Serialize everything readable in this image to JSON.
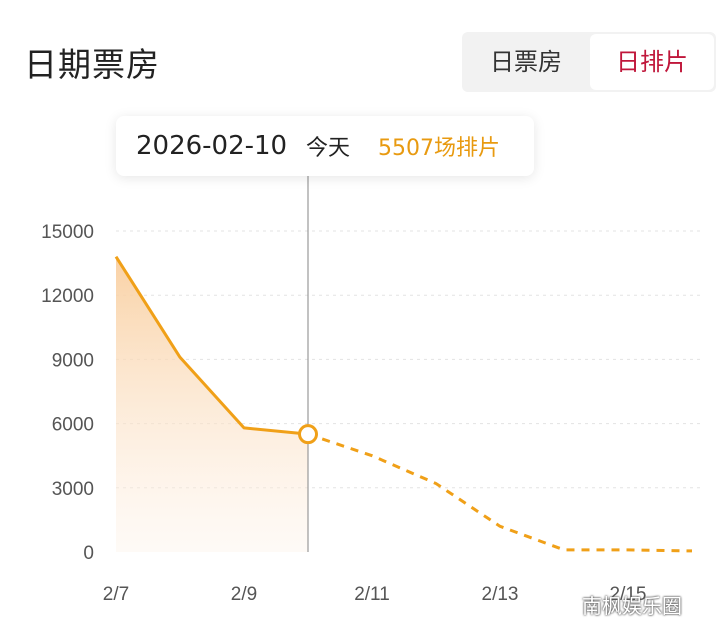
{
  "header": {
    "title": "日期票房",
    "toggle_box_office": "日票房",
    "toggle_screenings": "日排片"
  },
  "tooltip": {
    "date": "2026-02-10",
    "day_label": "今天",
    "value_text": "5507场排片"
  },
  "watermark": "南枫娱乐圈",
  "colors": {
    "accent": "#f0a018",
    "active_toggle": "#c0173b",
    "area_top": "#f9cfa0"
  },
  "chart_data": {
    "type": "line",
    "title": "",
    "xlabel": "",
    "ylabel": "",
    "ylim": [
      0,
      15000
    ],
    "yticks": [
      0,
      3000,
      6000,
      9000,
      12000,
      15000
    ],
    "xtick_labels": [
      "2/7",
      "2/9",
      "2/11",
      "2/13",
      "2/15"
    ],
    "x_dates": [
      "2/7",
      "2/8",
      "2/9",
      "2/10",
      "2/11",
      "2/12",
      "2/13",
      "2/14",
      "2/15",
      "2/16"
    ],
    "actual_values": [
      13800,
      9100,
      5800,
      5507
    ],
    "forecast_values": [
      5507,
      4500,
      3200,
      1200,
      100,
      100,
      50
    ],
    "selected_date": "2/10",
    "grid": true
  }
}
